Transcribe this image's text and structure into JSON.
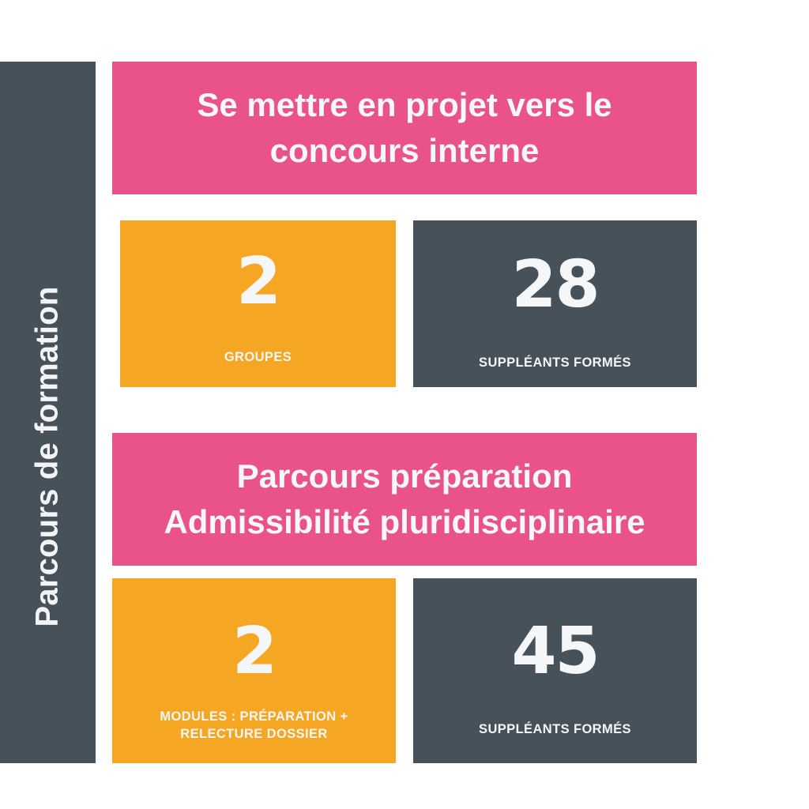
{
  "sidebar": {
    "label": "Parcours de formation"
  },
  "colors": {
    "pink": "#e9538a",
    "orange": "#f5a623",
    "dark_slate": "#465159",
    "text_light": "#f4f6f7"
  },
  "section1": {
    "title_line1": "Se mettre en projet vers le",
    "title_line2": "concours interne",
    "stat_left": {
      "value": "2",
      "caption": "GROUPES"
    },
    "stat_right": {
      "value": "28",
      "caption": "SUPPLÉANTS FORMÉS"
    }
  },
  "section2": {
    "title_line1": "Parcours préparation",
    "title_line2": "Admissibilité pluridisciplinaire",
    "stat_left": {
      "value": "2",
      "caption": "MODULES : PRÉPARATION + RELECTURE DOSSIER"
    },
    "stat_right": {
      "value": "45",
      "caption": "SUPPLÉANTS FORMÉS"
    }
  }
}
